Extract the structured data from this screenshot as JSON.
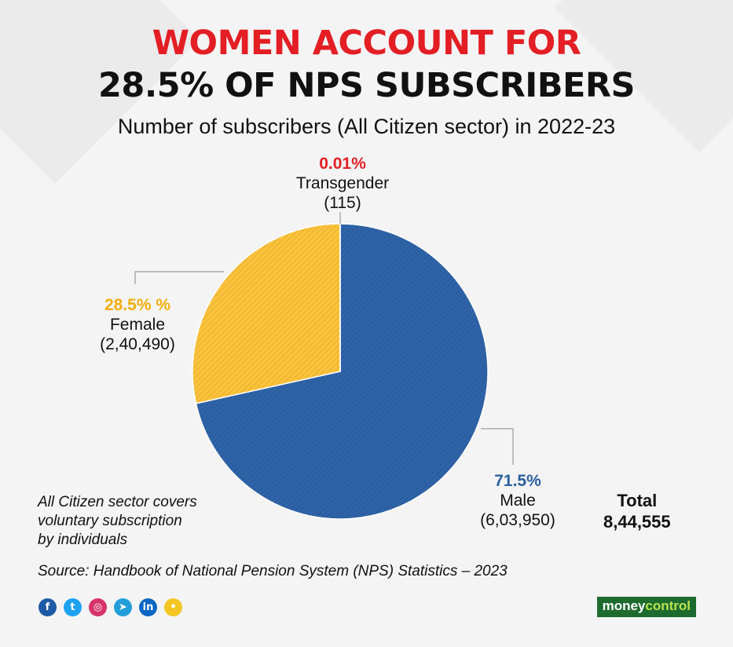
{
  "headline": {
    "line1": "WOMEN ACCOUNT FOR",
    "line2": "28.5% OF NPS SUBSCRIBERS",
    "line1_color": "#e31e24"
  },
  "subtitle": "Number of subscribers (All Citizen sector) in 2022-23",
  "chart_data": {
    "type": "pie",
    "title": "Number of subscribers (All Citizen sector) in 2022-23",
    "slices": [
      {
        "name": "Male",
        "value": 603950,
        "pct_label": "71.5%",
        "count_label": "(6,03,950)",
        "color": "#2e63a8",
        "label_color": "#2a5fa0"
      },
      {
        "name": "Female",
        "value": 240490,
        "pct_label": "28.5% %",
        "count_label": "(2,40,490)",
        "color": "#fbc23a",
        "label_color": "#f2ae0c"
      },
      {
        "name": "Transgender",
        "value": 115,
        "pct_label": "0.01%",
        "count_label": "(115)",
        "color": "#e31e24",
        "label_color": "#e31e24"
      }
    ],
    "start_angle_deg": 0,
    "total_label": "Total",
    "total_value": "8,44,555"
  },
  "note": {
    "line1": "All Citizen sector covers",
    "line2": "voluntary subscription",
    "line3": "by individuals"
  },
  "source": "Source: Handbook of National Pension System (NPS) Statistics – 2023",
  "social": [
    {
      "icon": "facebook-icon",
      "glyph": "f",
      "color": "#1e5aa5"
    },
    {
      "icon": "twitter-icon",
      "glyph": "t",
      "color": "#1da1f2"
    },
    {
      "icon": "instagram-icon",
      "glyph": "◎",
      "color": "#d6336c"
    },
    {
      "icon": "telegram-icon",
      "glyph": "➤",
      "color": "#229ed9"
    },
    {
      "icon": "linkedin-icon",
      "glyph": "in",
      "color": "#0a66c2"
    },
    {
      "icon": "koo-icon",
      "glyph": "•",
      "color": "#f3c623"
    }
  ],
  "brand": {
    "part1": "money",
    "part2": "control"
  }
}
